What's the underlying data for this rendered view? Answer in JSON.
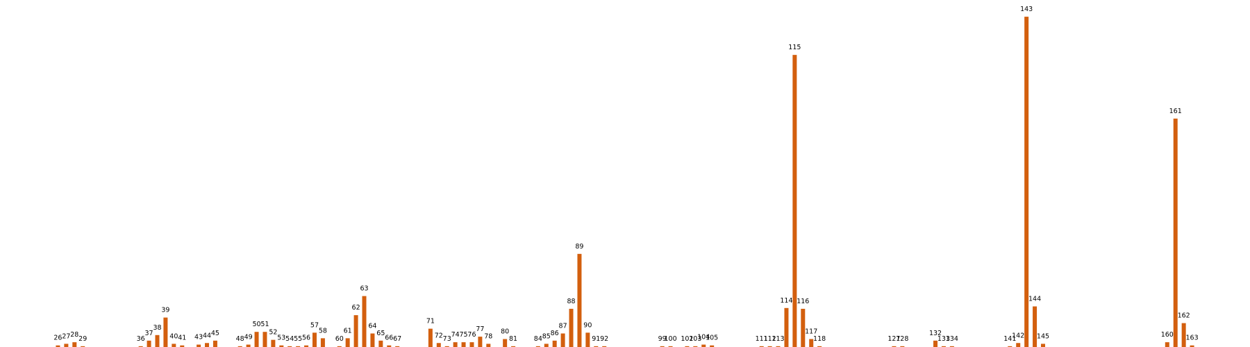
{
  "chart_data": {
    "type": "bar",
    "color": "#d35f0e",
    "x": [
      26,
      27,
      28,
      29,
      36,
      37,
      38,
      39,
      40,
      41,
      43,
      44,
      45,
      48,
      49,
      50,
      51,
      52,
      53,
      54,
      55,
      56,
      57,
      58,
      60,
      61,
      62,
      63,
      64,
      65,
      66,
      67,
      71,
      72,
      73,
      74,
      75,
      76,
      77,
      78,
      80,
      81,
      84,
      85,
      86,
      87,
      88,
      89,
      90,
      91,
      92,
      99,
      100,
      102,
      103,
      104,
      105,
      111,
      112,
      113,
      114,
      115,
      116,
      117,
      118,
      127,
      128,
      132,
      133,
      134,
      141,
      142,
      143,
      144,
      145,
      160,
      161,
      162,
      163
    ],
    "values": [
      2,
      4,
      6,
      1,
      1,
      8,
      15,
      37,
      4,
      2,
      3,
      5,
      8,
      1,
      3,
      19,
      19,
      9,
      2,
      1,
      1,
      2,
      18,
      11,
      1,
      11,
      40,
      64,
      17,
      8,
      2,
      1,
      23,
      5,
      1,
      6,
      6,
      6,
      13,
      4,
      10,
      1,
      1,
      4,
      8,
      17,
      48,
      117,
      18,
      1,
      1,
      1,
      1,
      1,
      1,
      3,
      2,
      1,
      1,
      1,
      49,
      367,
      48,
      10,
      1,
      1,
      1,
      8,
      1,
      1,
      1,
      5,
      415,
      51,
      4,
      6,
      287,
      30,
      2
    ],
    "xlim": [
      19,
      170
    ],
    "ylim": [
      0,
      436
    ]
  }
}
